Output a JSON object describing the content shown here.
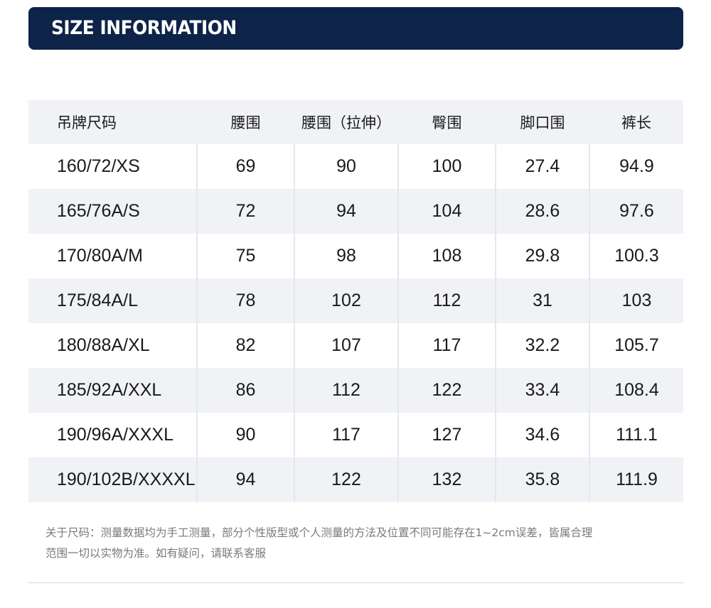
{
  "banner": {
    "title": "SIZE INFORMATION"
  },
  "table": {
    "headers": [
      "吊牌尺码",
      "腰围",
      "腰围（拉伸）",
      "臀围",
      "脚口围",
      "裤长"
    ],
    "rows": [
      [
        "160/72/XS",
        "69",
        "90",
        "100",
        "27.4",
        "94.9"
      ],
      [
        "165/76A/S",
        "72",
        "94",
        "104",
        "28.6",
        "97.6"
      ],
      [
        "170/80A/M",
        "75",
        "98",
        "108",
        "29.8",
        "100.3"
      ],
      [
        "175/84A/L",
        "78",
        "102",
        "112",
        "31",
        "103"
      ],
      [
        "180/88A/XL",
        "82",
        "107",
        "117",
        "32.2",
        "105.7"
      ],
      [
        "185/92A/XXL",
        "86",
        "112",
        "122",
        "33.4",
        "108.4"
      ],
      [
        "190/96A/XXXL",
        "90",
        "117",
        "127",
        "34.6",
        "111.1"
      ],
      [
        "190/102B/XXXXL",
        "94",
        "122",
        "132",
        "35.8",
        "111.9"
      ]
    ]
  },
  "note": {
    "line1": "关于尺码：测量数据均为手工测量，部分个性版型或个人测量的方法及位置不同可能存在1~2cm误差，皆属合理",
    "line2": "范围一切以实物为准。如有疑问，请联系客服"
  },
  "colors": {
    "banner_bg": "#0d2448",
    "stripe_bg": "#f0f2f6",
    "note_text": "#7a7a7a"
  }
}
